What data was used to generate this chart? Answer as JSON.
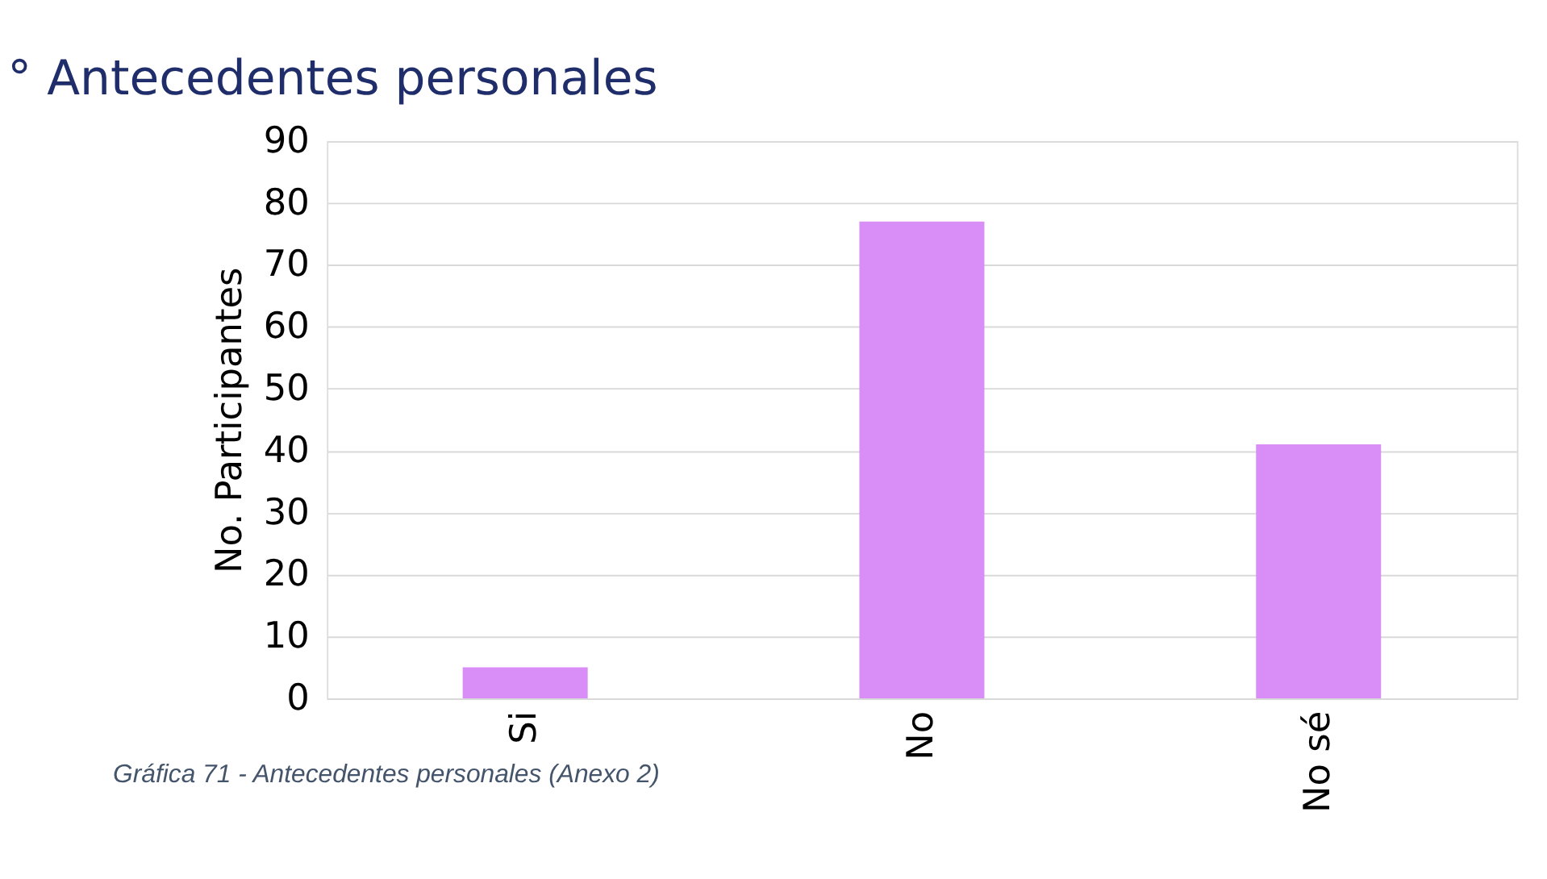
{
  "chart_data": {
    "type": "bar",
    "title": "° Antecedentes personales",
    "ylabel": "No. Participantes",
    "categories": [
      "Si",
      "No",
      "No sé"
    ],
    "values": [
      5,
      77,
      41
    ],
    "color": "#d98ef7",
    "ylim": [
      0,
      90
    ],
    "yticks": [
      0,
      10,
      20,
      30,
      40,
      50,
      60,
      70,
      80,
      90
    ],
    "grid": "y",
    "annotations": [
      "Gráfica 71 - Antecedentes personales (Anexo 2)"
    ]
  }
}
